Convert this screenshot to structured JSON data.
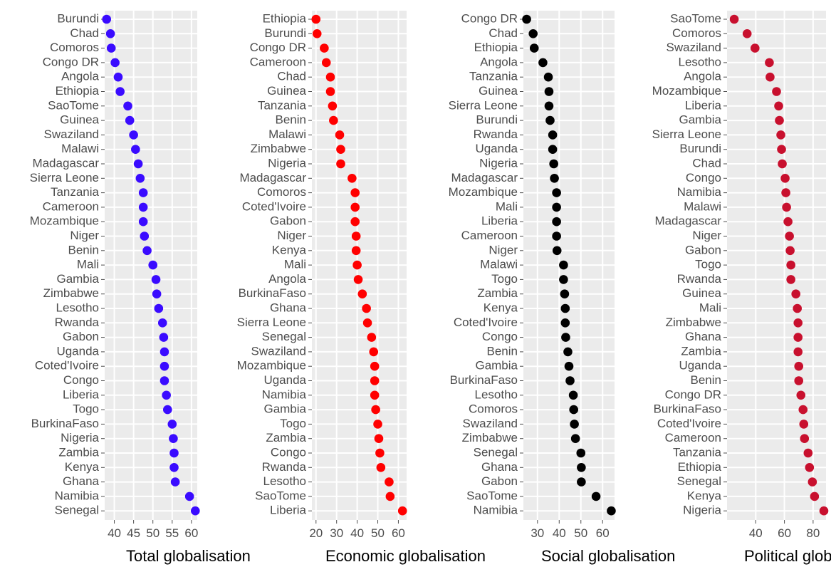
{
  "chart_data": [
    {
      "type": "scatter",
      "xlabel": "Total globalisation",
      "color": "#3a0bff",
      "xlim": [
        37.5,
        61.5
      ],
      "xticks": [
        40,
        45,
        50,
        55,
        60
      ],
      "categories": [
        "Burundi",
        "Chad",
        "Comoros",
        "Congo DR",
        "Angola",
        "Ethiopia",
        "SaoTome",
        "Guinea",
        "Swaziland",
        "Malawi",
        "Madagascar",
        "Sierra Leone",
        "Tanzania",
        "Cameroon",
        "Mozambique",
        "Niger",
        "Benin",
        "Mali",
        "Gambia",
        "Zimbabwe",
        "Lesotho",
        "Rwanda",
        "Gabon",
        "Uganda",
        "Coted'Ivoire",
        "Congo",
        "Liberia",
        "Togo",
        "BurkinaFaso",
        "Nigeria",
        "Zambia",
        "Kenya",
        "Ghana",
        "Namibia",
        "Senegal"
      ],
      "values": [
        38.0,
        39.0,
        39.2,
        40.2,
        41.0,
        41.5,
        43.5,
        44.0,
        45.0,
        45.5,
        46.2,
        46.7,
        47.5,
        47.5,
        47.5,
        47.8,
        48.5,
        50.0,
        50.8,
        51.0,
        51.5,
        52.5,
        52.8,
        53.0,
        53.0,
        53.0,
        53.5,
        53.8,
        55.0,
        55.3,
        55.5,
        55.5,
        55.8,
        59.5,
        61.0
      ]
    },
    {
      "type": "scatter",
      "xlabel": "Economic globalisation",
      "color": "#ff0000",
      "xlim": [
        18.0,
        64.0
      ],
      "xticks": [
        20,
        30,
        40,
        50,
        60
      ],
      "categories": [
        "Ethiopia",
        "Burundi",
        "Congo DR",
        "Cameroon",
        "Chad",
        "Guinea",
        "Tanzania",
        "Benin",
        "Malawi",
        "Zimbabwe",
        "Nigeria",
        "Madagascar",
        "Comoros",
        "Coted'Ivoire",
        "Gabon",
        "Niger",
        "Kenya",
        "Mali",
        "Angola",
        "BurkinaFaso",
        "Ghana",
        "Sierra Leone",
        "Senegal",
        "Swaziland",
        "Mozambique",
        "Uganda",
        "Namibia",
        "Gambia",
        "Togo",
        "Zambia",
        "Congo",
        "Rwanda",
        "Lesotho",
        "SaoTome",
        "Liberia"
      ],
      "values": [
        20.0,
        20.5,
        24.0,
        25.0,
        27.0,
        27.0,
        28.0,
        28.5,
        31.5,
        32.0,
        32.0,
        37.5,
        39.0,
        39.0,
        39.0,
        39.5,
        39.5,
        40.0,
        40.5,
        42.5,
        44.5,
        45.0,
        47.0,
        48.0,
        48.5,
        48.5,
        48.5,
        49.0,
        50.0,
        50.5,
        51.0,
        51.5,
        55.5,
        56.0,
        62.0
      ]
    },
    {
      "type": "scatter",
      "xlabel": "Social globalisation",
      "color": "#000000",
      "xlim": [
        23.5,
        65.5
      ],
      "xticks": [
        30,
        40,
        50,
        60
      ],
      "categories": [
        "Congo DR",
        "Chad",
        "Ethiopia",
        "Angola",
        "Tanzania",
        "Guinea",
        "Sierra Leone",
        "Burundi",
        "Rwanda",
        "Uganda",
        "Nigeria",
        "Madagascar",
        "Mozambique",
        "Mali",
        "Liberia",
        "Cameroon",
        "Niger",
        "Malawi",
        "Togo",
        "Zambia",
        "Kenya",
        "Coted'Ivoire",
        "Congo",
        "Benin",
        "Gambia",
        "BurkinaFaso",
        "Lesotho",
        "Comoros",
        "Swaziland",
        "Zimbabwe",
        "Senegal",
        "Ghana",
        "Gabon",
        "SaoTome",
        "Namibia"
      ],
      "values": [
        25.0,
        28.0,
        28.5,
        32.5,
        35.0,
        35.3,
        35.3,
        35.8,
        37.0,
        37.0,
        37.5,
        37.8,
        38.8,
        38.8,
        38.8,
        38.8,
        39.0,
        42.0,
        42.0,
        42.5,
        42.8,
        42.8,
        43.0,
        44.0,
        44.5,
        45.0,
        46.5,
        46.7,
        47.0,
        47.5,
        50.0,
        50.2,
        50.2,
        57.0,
        64.0
      ]
    },
    {
      "type": "scatter",
      "xlabel": "Political globalisation",
      "color": "#c8102e",
      "xlim": [
        20.0,
        89.0
      ],
      "xticks": [
        40,
        60,
        80
      ],
      "categories": [
        "SaoTome",
        "Comoros",
        "Swaziland",
        "Lesotho",
        "Angola",
        "Mozambique",
        "Liberia",
        "Gambia",
        "Sierra Leone",
        "Burundi",
        "Chad",
        "Congo",
        "Namibia",
        "Malawi",
        "Madagascar",
        "Niger",
        "Gabon",
        "Togo",
        "Rwanda",
        "Guinea",
        "Mali",
        "Zimbabwe",
        "Ghana",
        "Zambia",
        "Uganda",
        "Benin",
        "Congo DR",
        "BurkinaFaso",
        "Coted'Ivoire",
        "Cameroon",
        "Tanzania",
        "Ethiopia",
        "Senegal",
        "Kenya",
        "Nigeria"
      ],
      "values": [
        25.0,
        34.0,
        39.5,
        49.5,
        50.0,
        54.5,
        56.0,
        56.5,
        57.5,
        58.0,
        58.5,
        60.5,
        61.0,
        61.5,
        62.5,
        63.5,
        64.0,
        64.5,
        64.5,
        68.0,
        69.0,
        69.5,
        69.5,
        69.5,
        70.0,
        70.0,
        71.5,
        73.0,
        73.5,
        74.0,
        76.5,
        77.5,
        79.5,
        81.0,
        87.5
      ]
    }
  ]
}
